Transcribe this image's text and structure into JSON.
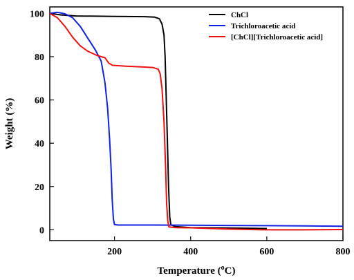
{
  "chart_data": {
    "type": "line",
    "xlabel_prefix": "Temperature (",
    "xlabel_sup": "o",
    "xlabel_suffix": "C)",
    "ylabel": "Weight (%)",
    "xlim": [
      30,
      800
    ],
    "ylim": [
      -5,
      103
    ],
    "xticks": [
      200,
      400,
      600,
      800
    ],
    "yticks": [
      0,
      20,
      40,
      60,
      80,
      100
    ],
    "grid": false,
    "legend_position": "top-right",
    "series": [
      {
        "name": "ChCl",
        "color": "#000000",
        "points": [
          [
            30,
            100
          ],
          [
            60,
            99.3
          ],
          [
            100,
            98.8
          ],
          [
            200,
            98.6
          ],
          [
            280,
            98.5
          ],
          [
            305,
            98.3
          ],
          [
            318,
            97.5
          ],
          [
            325,
            95
          ],
          [
            330,
            90
          ],
          [
            333,
            80
          ],
          [
            336,
            60
          ],
          [
            339,
            40
          ],
          [
            342,
            20
          ],
          [
            345,
            6
          ],
          [
            348,
            2.3
          ],
          [
            360,
            1.5
          ],
          [
            400,
            1.0
          ],
          [
            500,
            0.8
          ],
          [
            600,
            0.6
          ]
        ]
      },
      {
        "name": "Trichloroacetic acid",
        "color": "#1020e0",
        "points": [
          [
            30,
            100
          ],
          [
            50,
            100.5
          ],
          [
            70,
            99.8
          ],
          [
            90,
            98
          ],
          [
            110,
            94
          ],
          [
            130,
            88.5
          ],
          [
            150,
            83
          ],
          [
            165,
            78
          ],
          [
            175,
            68
          ],
          [
            182,
            56
          ],
          [
            187,
            42
          ],
          [
            191,
            28
          ],
          [
            194,
            14
          ],
          [
            197,
            5
          ],
          [
            200,
            2.4
          ],
          [
            210,
            2.2
          ],
          [
            300,
            2.2
          ],
          [
            400,
            2.1
          ],
          [
            500,
            2.0
          ],
          [
            600,
            1.9
          ],
          [
            700,
            1.8
          ],
          [
            800,
            1.6
          ]
        ]
      },
      {
        "name": "[ChCl][Trichloroacetic acid]",
        "color": "#ee1010",
        "points": [
          [
            30,
            100
          ],
          [
            50,
            98
          ],
          [
            70,
            94
          ],
          [
            90,
            89
          ],
          [
            110,
            85
          ],
          [
            130,
            82.5
          ],
          [
            155,
            80.5
          ],
          [
            175,
            79.5
          ],
          [
            185,
            77
          ],
          [
            195,
            76
          ],
          [
            230,
            75.6
          ],
          [
            270,
            75.3
          ],
          [
            300,
            75
          ],
          [
            315,
            74.2
          ],
          [
            320,
            72
          ],
          [
            325,
            65
          ],
          [
            330,
            50
          ],
          [
            334,
            30
          ],
          [
            337,
            12
          ],
          [
            340,
            4
          ],
          [
            343,
            1.3
          ],
          [
            360,
            1.0
          ],
          [
            400,
            0.9
          ],
          [
            500,
            0.3
          ],
          [
            600,
            0.0
          ],
          [
            700,
            0.0
          ],
          [
            800,
            0.1
          ]
        ]
      }
    ]
  }
}
